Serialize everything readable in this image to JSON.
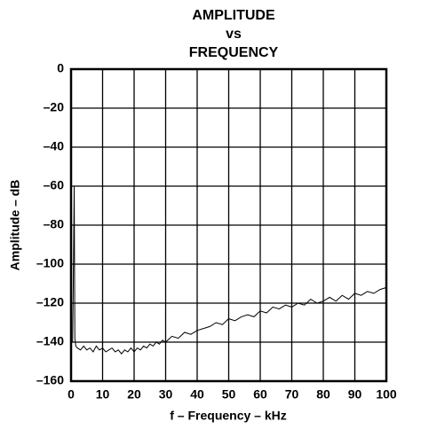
{
  "chart_data": {
    "type": "line",
    "title": [
      "AMPLITUDE",
      "vs",
      "FREQUENCY"
    ],
    "xlabel": "f – Frequency – kHz",
    "ylabel": "Amplitude – dB",
    "xlim": [
      0,
      100
    ],
    "xticks": [
      0,
      10,
      20,
      30,
      40,
      50,
      60,
      70,
      80,
      90,
      100
    ],
    "ylim": [
      -160,
      0
    ],
    "yticks": [
      {
        "value": 0,
        "label": "0"
      },
      {
        "value": -20,
        "label": "–20"
      },
      {
        "value": -40,
        "label": "–40"
      },
      {
        "value": -60,
        "label": "–60"
      },
      {
        "value": -80,
        "label": "–80"
      },
      {
        "value": -100,
        "label": "–100"
      },
      {
        "value": -120,
        "label": "–120"
      },
      {
        "value": -140,
        "label": "–140"
      },
      {
        "value": -160,
        "label": "–160"
      }
    ],
    "grid": true,
    "series": [
      {
        "color": "#000000",
        "x": [
          0.5,
          0.8,
          1.0,
          1.2,
          1.5,
          2,
          3,
          4,
          5,
          6,
          7,
          8,
          9,
          10,
          11,
          12,
          13,
          14,
          15,
          16,
          17,
          18,
          19,
          20,
          21,
          22,
          23,
          24,
          25,
          26,
          27,
          28,
          29,
          30,
          32,
          34,
          36,
          38,
          40,
          42,
          44,
          46,
          48,
          50,
          52,
          54,
          56,
          58,
          60,
          62,
          64,
          66,
          68,
          70,
          72,
          74,
          76,
          78,
          80,
          82,
          84,
          86,
          88,
          90,
          92,
          94,
          96,
          98,
          100
        ],
        "values": [
          -140,
          -95,
          -60,
          -138,
          -142,
          -143,
          -144,
          -142,
          -144,
          -143,
          -145,
          -142,
          -144,
          -143,
          -145,
          -144,
          -143,
          -145,
          -144,
          -146,
          -144,
          -145,
          -143,
          -145,
          -143,
          -144,
          -142,
          -143,
          -141,
          -142,
          -140,
          -141,
          -139,
          -140,
          -137,
          -138,
          -135,
          -136,
          -134,
          -133,
          -132,
          -130,
          -131,
          -128,
          -129,
          -127,
          -126,
          -127,
          -124,
          -125,
          -122,
          -123,
          -121,
          -122,
          -120,
          -121,
          -118,
          -120,
          -119,
          -117,
          -119,
          -116,
          -118,
          -115,
          -116,
          -114,
          -115,
          -113,
          -112
        ]
      }
    ]
  }
}
